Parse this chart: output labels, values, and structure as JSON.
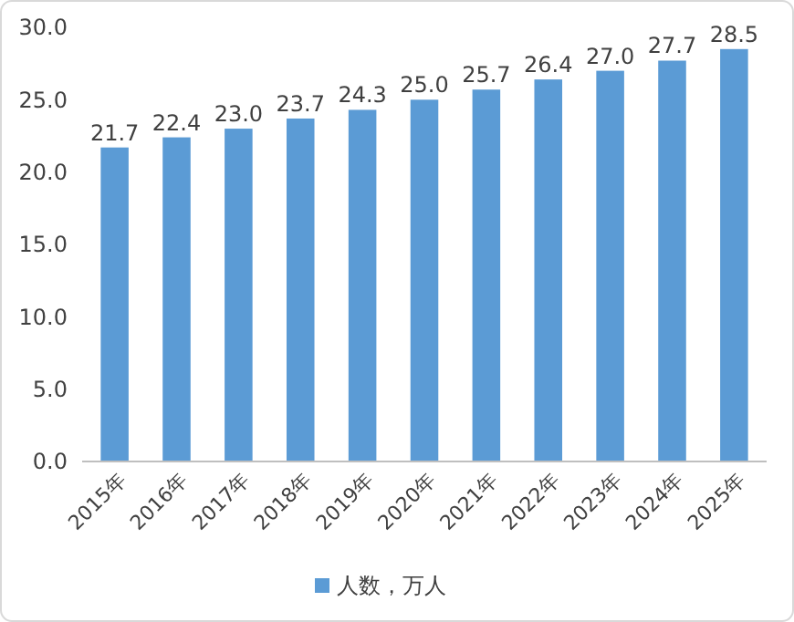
{
  "chart_data": {
    "type": "bar",
    "categories": [
      "2015年",
      "2016年",
      "2017年",
      "2018年",
      "2019年",
      "2020年",
      "2021年",
      "2022年",
      "2023年",
      "2024年",
      "2025年"
    ],
    "series": [
      {
        "name": "人数，万人",
        "color": "#5b9bd5",
        "values": [
          21.7,
          22.4,
          23.0,
          23.7,
          24.3,
          25.0,
          25.7,
          26.4,
          27.0,
          27.7,
          28.5
        ],
        "value_labels": [
          "21.7",
          "22.4",
          "23.0",
          "23.7",
          "24.3",
          "25.0",
          "25.7",
          "26.4",
          "27.0",
          "27.7",
          "28.5"
        ]
      }
    ],
    "ylim": [
      0,
      30
    ],
    "yticks": [
      {
        "value": 0,
        "label": "0.0"
      },
      {
        "value": 5,
        "label": "5.0"
      },
      {
        "value": 10,
        "label": "10.0"
      },
      {
        "value": 15,
        "label": "15.0"
      },
      {
        "value": 20,
        "label": "20.0"
      },
      {
        "value": 25,
        "label": "25.0"
      },
      {
        "value": 30,
        "label": "30.0"
      }
    ],
    "legend": "bottom",
    "grid": false
  }
}
